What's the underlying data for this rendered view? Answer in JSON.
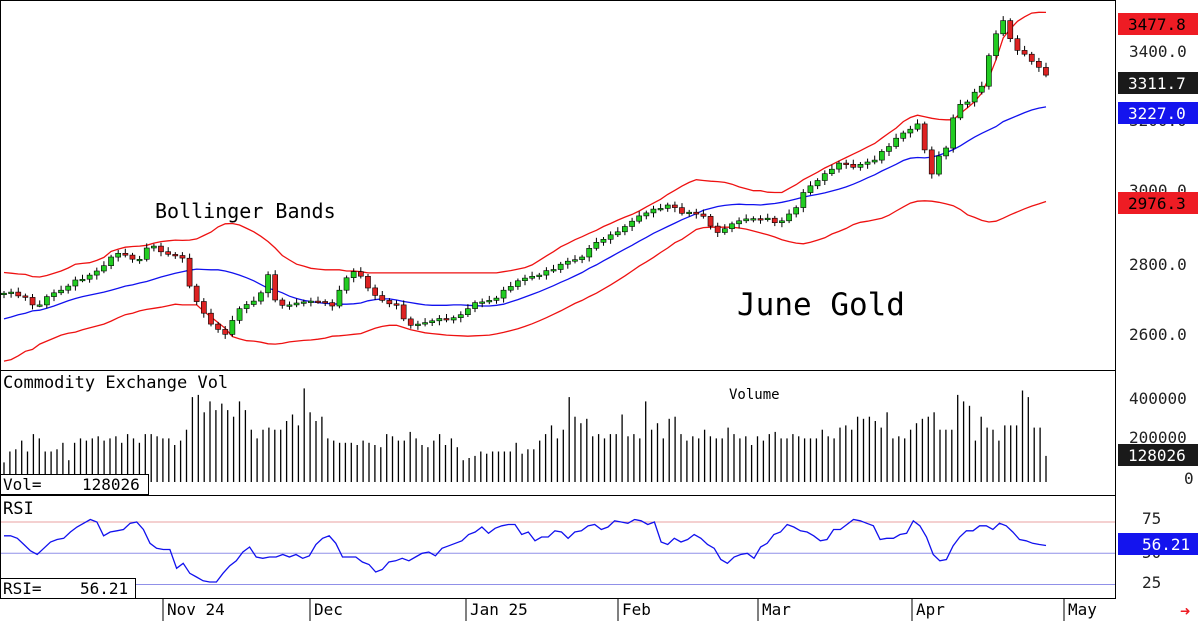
{
  "chart_data": [
    {
      "type": "candlestick",
      "title": "June Gold",
      "annotation": "Bollinger Bands",
      "x_labels": [
        "Nov 24",
        "Dec",
        "Jan 25",
        "Feb",
        "Mar",
        "Apr",
        "May"
      ],
      "y_ticks": [
        "3400.0",
        "3200.0",
        "3000.0",
        "2800.0",
        "2600.0"
      ],
      "ylim": [
        2540,
        3500
      ],
      "tags": {
        "upper_band": "3477.8",
        "last": "3311.7",
        "middle_band": "3227.0",
        "lower_band": "2976.3"
      },
      "colors": {
        "up": "#22cc22",
        "down": "#dd2222",
        "band": "#ee1111",
        "middle": "#1111ee",
        "tag_last": "#111111"
      },
      "close": [
        2733,
        2736,
        2726,
        2722,
        2702,
        2702,
        2724,
        2734,
        2741,
        2752,
        2768,
        2770,
        2781,
        2792,
        2806,
        2829,
        2839,
        2834,
        2823,
        2823,
        2853,
        2858,
        2843,
        2836,
        2833,
        2826,
        2752,
        2711,
        2680,
        2651,
        2637,
        2624,
        2661,
        2692,
        2703,
        2712,
        2734,
        2782,
        2715,
        2701,
        2702,
        2707,
        2710,
        2712,
        2711,
        2708,
        2699,
        2741,
        2774,
        2790,
        2778,
        2747,
        2727,
        2714,
        2705,
        2702,
        2665,
        2648,
        2651,
        2655,
        2660,
        2666,
        2662,
        2668,
        2676,
        2692,
        2708,
        2710,
        2714,
        2720,
        2741,
        2751,
        2766,
        2773,
        2778,
        2781,
        2793,
        2796,
        2810,
        2818,
        2822,
        2829,
        2852,
        2868,
        2876,
        2888,
        2896,
        2910,
        2924,
        2938,
        2946,
        2956,
        2958,
        2967,
        2960,
        2945,
        2948,
        2943,
        2937,
        2911,
        2894,
        2904,
        2917,
        2925,
        2930,
        2931,
        2929,
        2932,
        2920,
        2925,
        2943,
        2960,
        3000,
        3018,
        3032,
        3050,
        3062,
        3078,
        3075,
        3067,
        3075,
        3081,
        3086,
        3109,
        3122,
        3144,
        3158,
        3168,
        3182,
        3113,
        3049,
        3097,
        3118,
        3198,
        3234,
        3240,
        3266,
        3282,
        3363,
        3421,
        3456,
        3408,
        3377,
        3367,
        3348,
        3332,
        3311.7
      ],
      "upper_band": [
        2788,
        2786,
        2784,
        2783,
        2777,
        2776,
        2780,
        2786,
        2792,
        2800,
        2810,
        2812,
        2814,
        2820,
        2828,
        2844,
        2850,
        2855,
        2857,
        2858,
        2860,
        2866,
        2870,
        2872,
        2874,
        2873,
        2874,
        2877,
        2886,
        2895,
        2909,
        2917,
        2918,
        2914,
        2905,
        2896,
        2884,
        2870,
        2853,
        2833,
        2821,
        2810,
        2805,
        2799,
        2797,
        2795,
        2795,
        2795,
        2792,
        2792,
        2790,
        2787,
        2787,
        2787,
        2787,
        2787,
        2787,
        2787,
        2787,
        2787,
        2787,
        2787,
        2787,
        2787,
        2787,
        2787,
        2787,
        2787,
        2787,
        2787,
        2790,
        2793,
        2797,
        2801,
        2808,
        2820,
        2832,
        2843,
        2856,
        2865,
        2875,
        2883,
        2892,
        2900,
        2910,
        2918,
        2927,
        2935,
        2942,
        2951,
        2962,
        2972,
        2982,
        2995,
        3006,
        3017,
        3027,
        3034,
        3032,
        3030,
        3029,
        3027,
        3022,
        3015,
        3010,
        3005,
        3005,
        3001,
        3000,
        3000,
        3011,
        3021,
        3034,
        3044,
        3054,
        3065,
        3074,
        3084,
        3093,
        3102,
        3111,
        3121,
        3130,
        3144,
        3158,
        3171,
        3188,
        3199,
        3205,
        3201,
        3197,
        3194,
        3193,
        3193,
        3210,
        3225,
        3241,
        3264,
        3304,
        3352,
        3410,
        3434,
        3454,
        3466,
        3476,
        3478,
        3477.8
      ],
      "middle_band": [
        2665,
        2670,
        2676,
        2680,
        2686,
        2688,
        2693,
        2699,
        2706,
        2713,
        2719,
        2724,
        2728,
        2732,
        2736,
        2741,
        2746,
        2752,
        2755,
        2760,
        2764,
        2770,
        2776,
        2781,
        2786,
        2790,
        2794,
        2797,
        2796,
        2795,
        2795,
        2792,
        2787,
        2781,
        2774,
        2766,
        2756,
        2746,
        2741,
        2734,
        2725,
        2719,
        2714,
        2711,
        2708,
        2706,
        2705,
        2704,
        2704,
        2705,
        2707,
        2713,
        2716,
        2718,
        2718,
        2715,
        2711,
        2708,
        2705,
        2702,
        2701,
        2701,
        2701,
        2702,
        2702,
        2701,
        2700,
        2699,
        2699,
        2701,
        2704,
        2710,
        2716,
        2723,
        2730,
        2737,
        2745,
        2753,
        2762,
        2770,
        2779,
        2788,
        2799,
        2808,
        2819,
        2829,
        2840,
        2850,
        2860,
        2871,
        2881,
        2892,
        2901,
        2910,
        2919,
        2928,
        2936,
        2944,
        2953,
        2958,
        2963,
        2966,
        2968,
        2969,
        2968,
        2968,
        2967,
        2969,
        2971,
        2974,
        2978,
        2983,
        2988,
        2992,
        2995,
        2999,
        3004,
        3009,
        3015,
        3022,
        3030,
        3039,
        3047,
        3057,
        3066,
        3075,
        3085,
        3091,
        3093,
        3092,
        3094,
        3099,
        3106,
        3114,
        3124,
        3136,
        3147,
        3157,
        3166,
        3175,
        3188,
        3196,
        3204,
        3212,
        3219,
        3224,
        3227
      ],
      "lower_band": [
        2553,
        2557,
        2567,
        2579,
        2584,
        2598,
        2606,
        2614,
        2622,
        2627,
        2630,
        2636,
        2641,
        2646,
        2651,
        2659,
        2668,
        2676,
        2680,
        2686,
        2690,
        2693,
        2696,
        2700,
        2704,
        2702,
        2702,
        2702,
        2685,
        2670,
        2655,
        2640,
        2618,
        2612,
        2607,
        2606,
        2603,
        2599,
        2598,
        2600,
        2604,
        2606,
        2608,
        2609,
        2611,
        2614,
        2619,
        2620,
        2622,
        2624,
        2626,
        2633,
        2640,
        2645,
        2648,
        2648,
        2642,
        2636,
        2632,
        2628,
        2626,
        2624,
        2622,
        2621,
        2620,
        2619,
        2620,
        2621,
        2622,
        2625,
        2629,
        2634,
        2639,
        2645,
        2652,
        2660,
        2668,
        2677,
        2686,
        2696,
        2706,
        2714,
        2724,
        2733,
        2744,
        2755,
        2767,
        2779,
        2792,
        2805,
        2816,
        2828,
        2841,
        2853,
        2867,
        2876,
        2889,
        2902,
        2907,
        2908,
        2908,
        2908,
        2908,
        2906,
        2903,
        2898,
        2893,
        2888,
        2882,
        2875,
        2870,
        2866,
        2864,
        2868,
        2874,
        2880,
        2890,
        2897,
        2905,
        2915,
        2921,
        2924,
        2928,
        2932,
        2940,
        2951,
        2962,
        2972,
        2977,
        2978,
        2977,
        2974,
        2970,
        2965,
        2955,
        2941,
        2934,
        2926,
        2922,
        2924,
        2932,
        2941,
        2949,
        2957,
        2964,
        2970,
        2976.3
      ]
    },
    {
      "type": "bar",
      "title": "Commodity Exchange Vol",
      "subtitle": "Volume",
      "readout_label": "Vol=",
      "readout_value": "128026",
      "y_ticks": [
        "400000",
        "200000",
        "0"
      ],
      "ylim": [
        0,
        450000
      ],
      "tags": {
        "last": "128026"
      },
      "values": [
        90000,
        140000,
        150000,
        190000,
        140000,
        220000,
        200000,
        140000,
        140000,
        150000,
        180000,
        100000,
        180000,
        200000,
        190000,
        200000,
        210000,
        190000,
        200000,
        210000,
        180000,
        220000,
        200000,
        180000,
        220000,
        220000,
        210000,
        200000,
        200000,
        170000,
        190000,
        240000,
        390000,
        400000,
        320000,
        370000,
        330000,
        360000,
        330000,
        300000,
        370000,
        330000,
        240000,
        200000,
        240000,
        250000,
        240000,
        240000,
        280000,
        310000,
        260000,
        430000,
        320000,
        280000,
        300000,
        200000,
        190000,
        180000,
        180000,
        180000,
        170000,
        190000,
        180000,
        170000,
        160000,
        220000,
        210000,
        190000,
        190000,
        230000,
        200000,
        170000,
        160000,
        190000,
        220000,
        170000,
        200000,
        160000,
        100000,
        110000,
        120000,
        140000,
        130000,
        140000,
        140000,
        140000,
        140000,
        180000,
        130000,
        150000,
        150000,
        190000,
        220000,
        260000,
        200000,
        240000,
        390000,
        300000,
        270000,
        290000,
        210000,
        220000,
        200000,
        220000,
        220000,
        310000,
        210000,
        220000,
        200000,
        370000,
        240000,
        270000,
        200000,
        290000,
        300000,
        220000,
        190000,
        210000,
        200000,
        240000,
        210000,
        200000,
        200000,
        250000,
        220000,
        200000,
        210000,
        170000,
        210000,
        190000,
        220000,
        230000,
        200000,
        200000,
        220000,
        210000,
        200000,
        200000,
        200000,
        240000,
        210000,
        200000,
        250000,
        260000,
        240000,
        300000,
        290000,
        300000,
        280000,
        250000,
        320000,
        200000,
        210000,
        200000,
        240000,
        270000,
        290000,
        300000,
        320000,
        240000,
        240000,
        240000,
        400000,
        370000,
        350000,
        190000,
        300000,
        250000,
        240000,
        190000,
        260000,
        260000,
        260000,
        420000,
        390000,
        250000,
        250000,
        120000
      ]
    },
    {
      "type": "line",
      "title": "RSI",
      "readout_label": "RSI=",
      "readout_value": "56.21",
      "y_ticks": [
        "75",
        "50",
        "25"
      ],
      "ylim": [
        15,
        95
      ],
      "reference_lines": [
        75,
        50,
        25
      ],
      "tags": {
        "last": "56.21"
      },
      "values": [
        64,
        64,
        62,
        57,
        52,
        49,
        54,
        59,
        61,
        62,
        67,
        71,
        74,
        77,
        75,
        64,
        67,
        68,
        69,
        74,
        75,
        69,
        58,
        54,
        53,
        53,
        38,
        42,
        34,
        31,
        28,
        27,
        27,
        34,
        40,
        44,
        51,
        55,
        47,
        46,
        47,
        47,
        49,
        47,
        49,
        46,
        48,
        57,
        62,
        64,
        58,
        47,
        47,
        47,
        43,
        41,
        35,
        37,
        43,
        44,
        46,
        44,
        47,
        50,
        51,
        48,
        54,
        56,
        58,
        60,
        65,
        67,
        71,
        66,
        70,
        72,
        73,
        73,
        65,
        67,
        60,
        63,
        63,
        68,
        67,
        62,
        67,
        68,
        72,
        73,
        69,
        71,
        76,
        75,
        74,
        77,
        76,
        73,
        75,
        59,
        57,
        62,
        59,
        61,
        65,
        62,
        57,
        54,
        45,
        42,
        47,
        49,
        50,
        46,
        55,
        58,
        65,
        67,
        73,
        71,
        68,
        67,
        64,
        60,
        61,
        69,
        69,
        73,
        77,
        76,
        74,
        72,
        61,
        62,
        62,
        65,
        66,
        76,
        72,
        63,
        49,
        44,
        45,
        56,
        63,
        68,
        68,
        72,
        72,
        69,
        74,
        72,
        67,
        61,
        60,
        58,
        57,
        56.21
      ]
    }
  ],
  "watermark_arrow": "➜"
}
